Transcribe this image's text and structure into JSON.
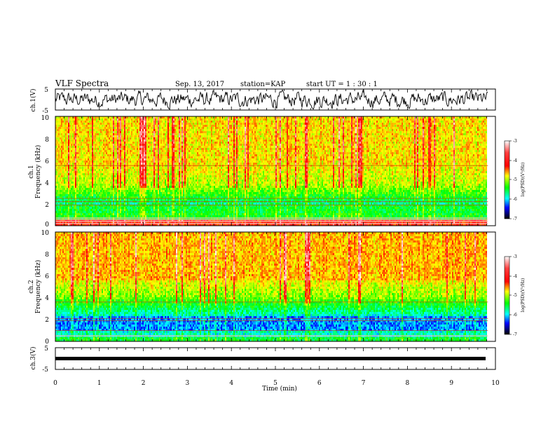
{
  "header": {
    "title": "VLF Spectra",
    "date": "Sep. 13, 2017",
    "station": "station=KAP",
    "start": "start  UT =   1 : 30 : 1"
  },
  "chart_data": [
    {
      "type": "line",
      "id": "ch1-waveform",
      "ylabel": "ch.1(V)",
      "yticks": [
        "5",
        "-5"
      ],
      "ylim": [
        -5,
        5
      ],
      "xlim": [
        0,
        10
      ],
      "description_series": "waveform"
    },
    {
      "type": "heatmap",
      "id": "ch1-spectrogram",
      "ylabel_line1": "ch.1",
      "ylabel_line2": "Frequency (kHz)",
      "yticks": [
        "0",
        "2",
        "4",
        "6",
        "8",
        "10"
      ],
      "ylim": [
        0,
        10
      ],
      "xlim": [
        0,
        9.83
      ],
      "colorbar": {
        "label": "log(PSD)(V²/Hz)",
        "ticks": [
          "-3",
          "-4",
          "-5",
          "-6",
          "-7"
        ],
        "range": [
          -7,
          -3
        ]
      },
      "tonal_lines_khz": [
        0.2,
        0.4,
        0.55,
        0.7,
        1.9,
        2.2,
        2.5,
        5.5
      ]
    },
    {
      "type": "heatmap",
      "id": "ch2-spectrogram",
      "ylabel_line1": "ch.2",
      "ylabel_line2": "Frequency (kHz)",
      "yticks": [
        "0",
        "2",
        "4",
        "6",
        "8",
        "10"
      ],
      "ylim": [
        0,
        10
      ],
      "xlim": [
        0,
        9.83
      ],
      "colorbar": {
        "label": "log(PSD)(V²/Hz)",
        "ticks": [
          "-3",
          "-4",
          "-5",
          "-6",
          "-7"
        ],
        "range": [
          -7,
          -3
        ]
      },
      "tonal_lines_khz": [
        0.5,
        1.0,
        1.9,
        2.1,
        3.6
      ]
    },
    {
      "type": "line",
      "id": "ch3-waveform",
      "ylabel": "ch.3(V)",
      "yticks": [
        "5",
        "-5"
      ],
      "ylim": [
        -5,
        5
      ],
      "xlim": [
        0,
        10
      ],
      "constant_value": 0
    }
  ],
  "xaxis": {
    "label": "Time (min)",
    "ticks": [
      "0",
      "1",
      "2",
      "3",
      "4",
      "5",
      "6",
      "7",
      "8",
      "9",
      "10"
    ],
    "range": [
      0,
      10
    ]
  },
  "colormap": [
    "#ffffff",
    "#ff0000",
    "#ffff00",
    "#00ff00",
    "#00ffff",
    "#0000ff",
    "#000000"
  ]
}
